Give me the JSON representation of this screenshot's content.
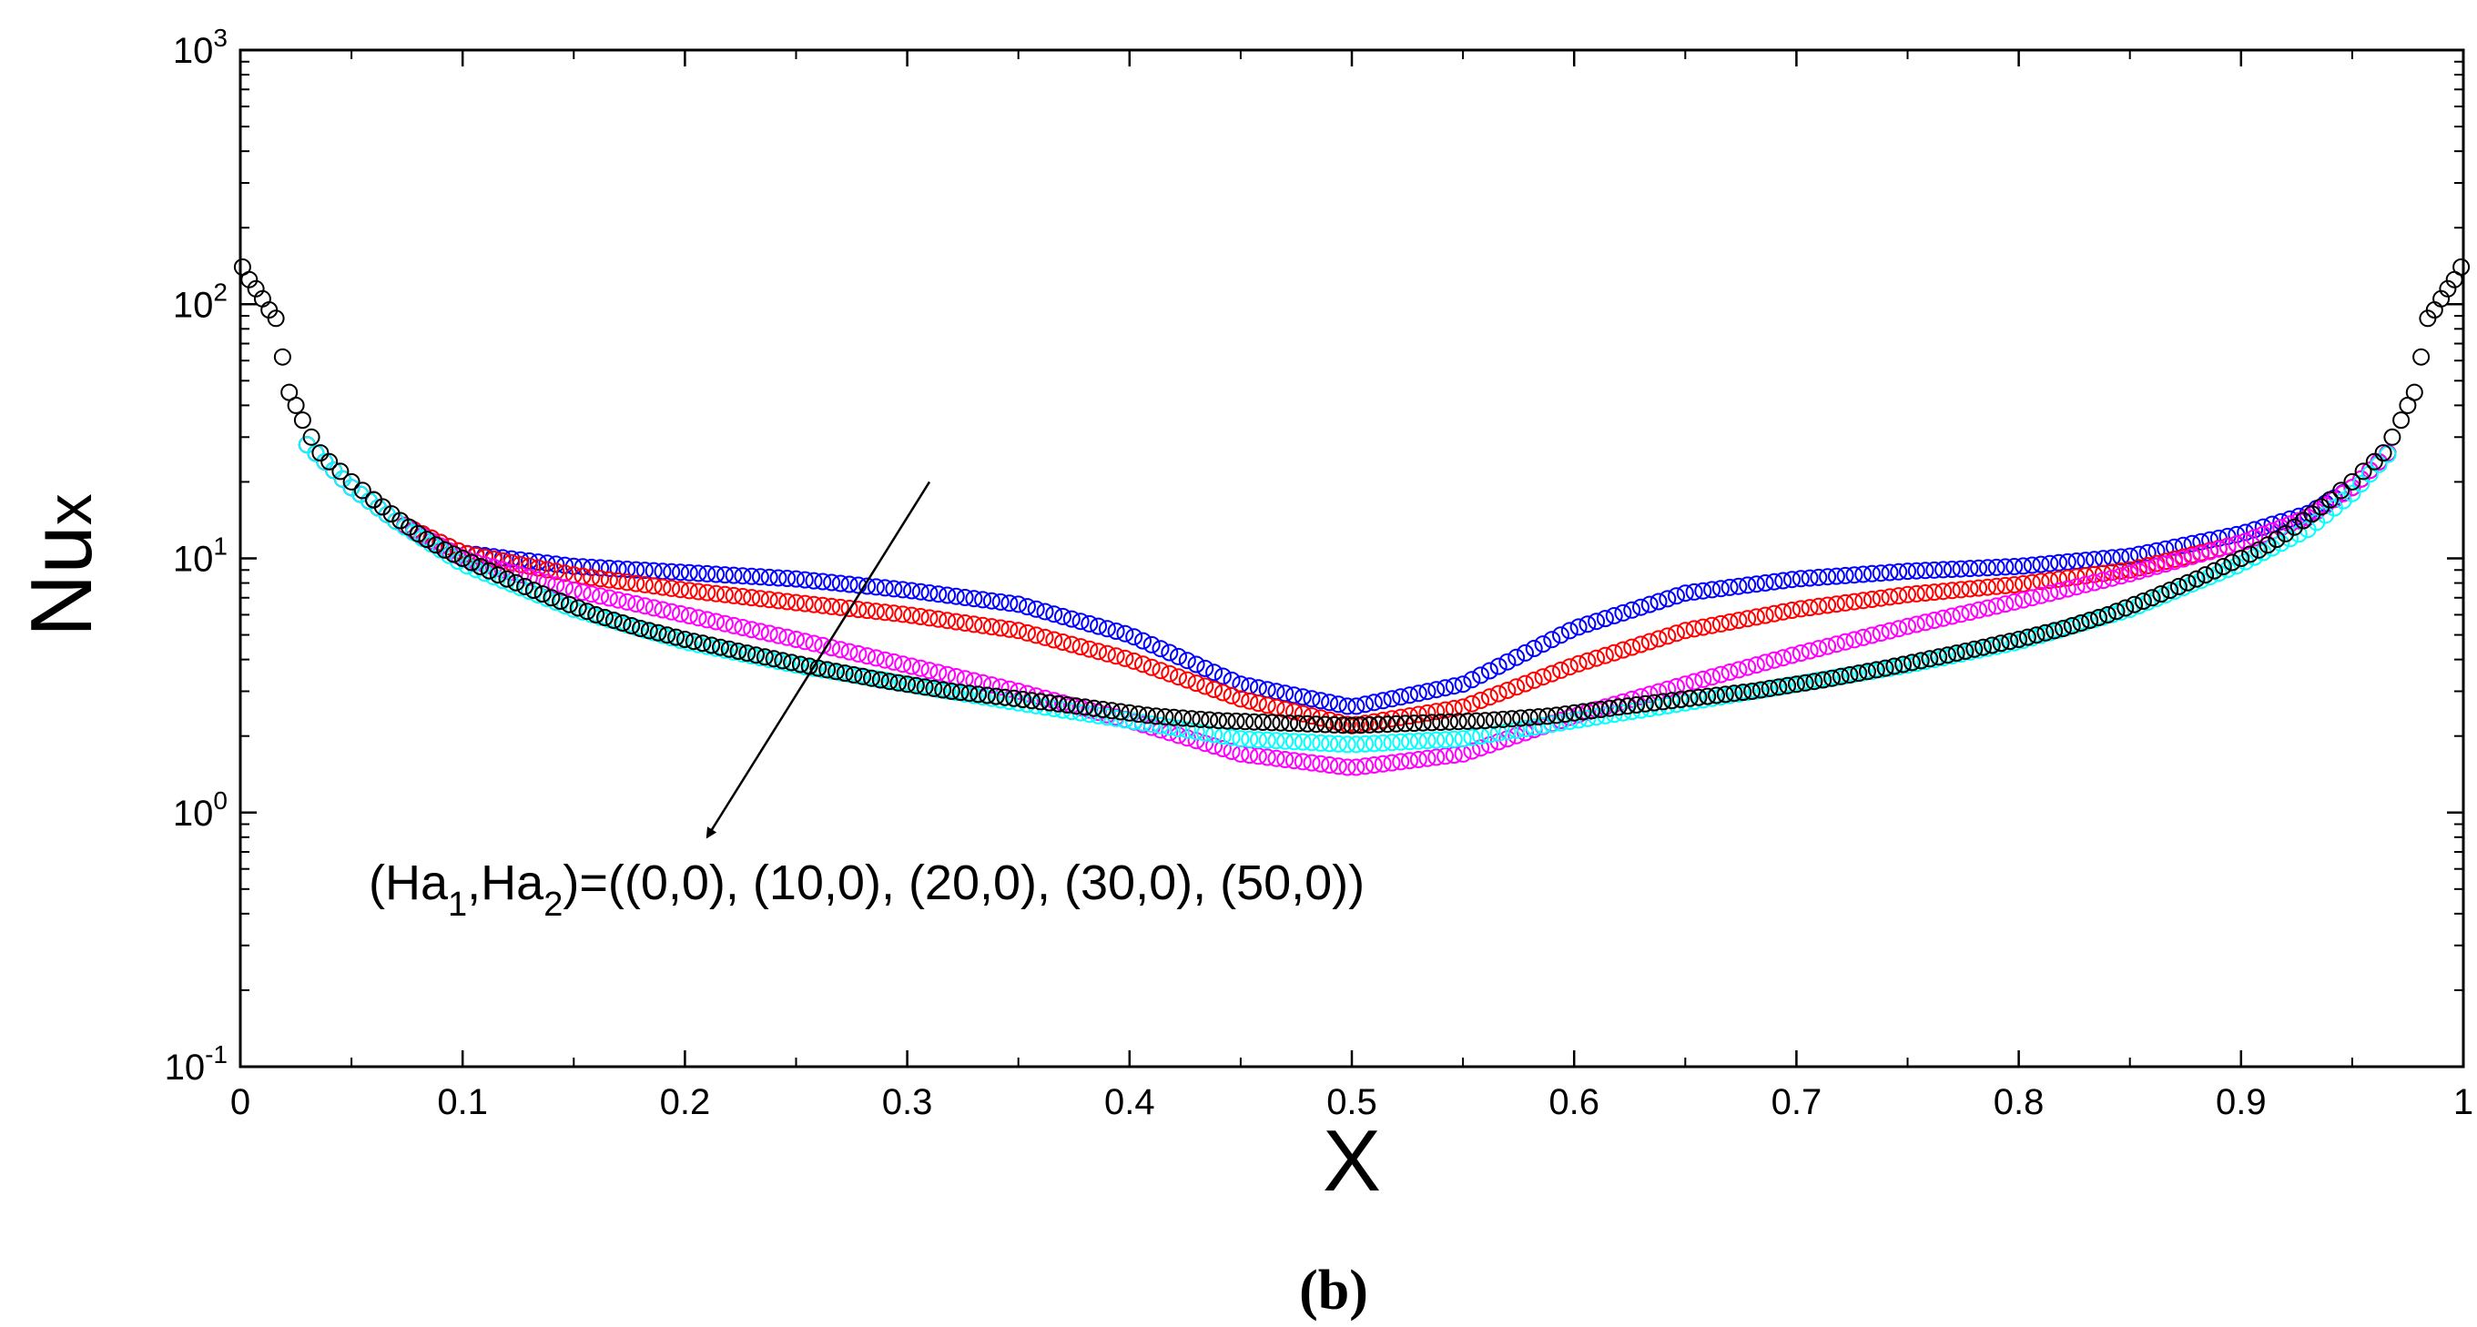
{
  "chart_data": {
    "type": "scatter",
    "title": "",
    "xlabel": "X",
    "ylabel": {
      "base": "Nu",
      "subscript": "x"
    },
    "xlim": [
      0,
      1
    ],
    "ylim": [
      0.1,
      1000
    ],
    "yscale": "log",
    "x_ticks": [
      0,
      0.1,
      0.2,
      0.3,
      0.4,
      0.5,
      0.6,
      0.7,
      0.8,
      0.9,
      1
    ],
    "x_tick_labels": [
      "0",
      "0.1",
      "0.2",
      "0.3",
      "0.4",
      "0.5",
      "0.6",
      "0.7",
      "0.8",
      "0.9",
      "1"
    ],
    "y_ticks": [
      {
        "value": 0.1,
        "base": "10",
        "exp": "-1"
      },
      {
        "value": 1,
        "base": "10",
        "exp": "0"
      },
      {
        "value": 10,
        "base": "10",
        "exp": "1"
      },
      {
        "value": 100,
        "base": "10",
        "exp": "2"
      },
      {
        "value": 1000,
        "base": "10",
        "exp": "3"
      }
    ],
    "marker": "open-circle",
    "series": [
      {
        "name": "(Ha1,Ha2)=(0,0)",
        "color": "#0000ff",
        "x": [
          0.03,
          0.05,
          0.07,
          0.1,
          0.15,
          0.2,
          0.25,
          0.3,
          0.35,
          0.4,
          0.45,
          0.5,
          0.55,
          0.6,
          0.65,
          0.7,
          0.75,
          0.8,
          0.85,
          0.9,
          0.93,
          0.95,
          0.97
        ],
        "y": [
          28,
          19,
          14,
          10.5,
          9.3,
          8.8,
          8.3,
          7.5,
          6.6,
          5,
          3.2,
          2.6,
          3.2,
          5.3,
          7.3,
          8.3,
          8.9,
          9.3,
          10.2,
          12.5,
          15,
          19,
          28
        ]
      },
      {
        "name": "(Ha1,Ha2)=(10,0)",
        "color": "#ff0000",
        "x": [
          0.03,
          0.05,
          0.07,
          0.1,
          0.15,
          0.2,
          0.25,
          0.3,
          0.35,
          0.4,
          0.45,
          0.5,
          0.55,
          0.6,
          0.65,
          0.7,
          0.75,
          0.8,
          0.85,
          0.9,
          0.93,
          0.95,
          0.97
        ],
        "y": [
          28,
          19,
          14,
          10.5,
          8.6,
          7.5,
          6.7,
          6,
          5.2,
          4,
          2.8,
          2.2,
          2.6,
          3.8,
          5.2,
          6.3,
          7.2,
          7.9,
          9,
          11.5,
          14.5,
          19,
          28
        ]
      },
      {
        "name": "(Ha1,Ha2)=(20,0)",
        "color": "#ff00ff",
        "x": [
          0.03,
          0.05,
          0.07,
          0.1,
          0.15,
          0.2,
          0.25,
          0.3,
          0.35,
          0.4,
          0.45,
          0.5,
          0.55,
          0.6,
          0.65,
          0.7,
          0.75,
          0.8,
          0.85,
          0.9,
          0.93,
          0.95,
          0.97
        ],
        "y": [
          28,
          19,
          14,
          10,
          7.5,
          6,
          4.8,
          3.8,
          3,
          2.3,
          1.7,
          1.5,
          1.7,
          2.4,
          3.2,
          4.2,
          5.4,
          6.8,
          8.7,
          11.5,
          14.5,
          19,
          28
        ]
      },
      {
        "name": "(Ha1,Ha2)=(30,0)",
        "color": "#00ffff",
        "x": [
          0.03,
          0.05,
          0.07,
          0.1,
          0.15,
          0.2,
          0.25,
          0.3,
          0.35,
          0.4,
          0.45,
          0.5,
          0.55,
          0.6,
          0.65,
          0.7,
          0.75,
          0.8,
          0.85,
          0.9,
          0.93,
          0.95,
          0.97
        ],
        "y": [
          28,
          19,
          14,
          9.5,
          6.3,
          4.7,
          3.8,
          3.2,
          2.7,
          2.3,
          1.95,
          1.85,
          1.95,
          2.3,
          2.7,
          3.2,
          3.8,
          4.7,
          6.3,
          9.5,
          13,
          18,
          28
        ]
      },
      {
        "name": "(Ha1,Ha2)=(50,0)",
        "color": "#000000",
        "x": [
          0.001,
          0.004,
          0.007,
          0.01,
          0.013,
          0.016,
          0.019,
          0.022,
          0.025,
          0.028,
          0.032,
          0.036,
          0.04,
          0.045,
          0.05,
          0.055,
          0.06,
          0.07,
          0.08,
          0.09,
          0.1,
          0.12,
          0.14,
          0.16,
          0.18,
          0.2,
          0.23,
          0.26,
          0.29,
          0.32,
          0.35,
          0.38,
          0.41,
          0.44,
          0.47,
          0.5,
          0.53,
          0.56,
          0.59,
          0.62,
          0.65,
          0.68,
          0.71,
          0.74,
          0.77,
          0.8,
          0.82,
          0.84,
          0.86,
          0.88,
          0.9,
          0.91,
          0.92,
          0.93,
          0.94,
          0.945,
          0.95,
          0.955,
          0.96,
          0.964,
          0.968,
          0.972,
          0.975,
          0.978,
          0.981,
          0.984,
          0.987,
          0.99,
          0.993,
          0.996,
          0.999
        ],
        "y": [
          140,
          125,
          115,
          105,
          95,
          88,
          62,
          45,
          40,
          35,
          30,
          26,
          24,
          22,
          20,
          18.5,
          17,
          14.5,
          12.5,
          11,
          10,
          8.3,
          7,
          6,
          5.3,
          4.8,
          4.2,
          3.7,
          3.3,
          3,
          2.8,
          2.6,
          2.4,
          2.3,
          2.25,
          2.2,
          2.25,
          2.3,
          2.4,
          2.6,
          2.8,
          3,
          3.3,
          3.7,
          4.2,
          4.8,
          5.3,
          6,
          7,
          8.3,
          10,
          11,
          12.5,
          14.5,
          17,
          18.5,
          20,
          22,
          24,
          26,
          30,
          35,
          40,
          45,
          62,
          88,
          95,
          105,
          115,
          125,
          140
        ]
      }
    ],
    "annotation": {
      "text_prefix": "(Ha",
      "sub1": "1",
      "mid": ",Ha",
      "sub2": "2",
      "suffix": ")=((0,0), (10,0), (20,0), (30,0), (50,0))",
      "arrow_from": [
        0.31,
        20
      ],
      "arrow_to": [
        0.21,
        0.8
      ]
    },
    "panel_label": "(b)"
  }
}
